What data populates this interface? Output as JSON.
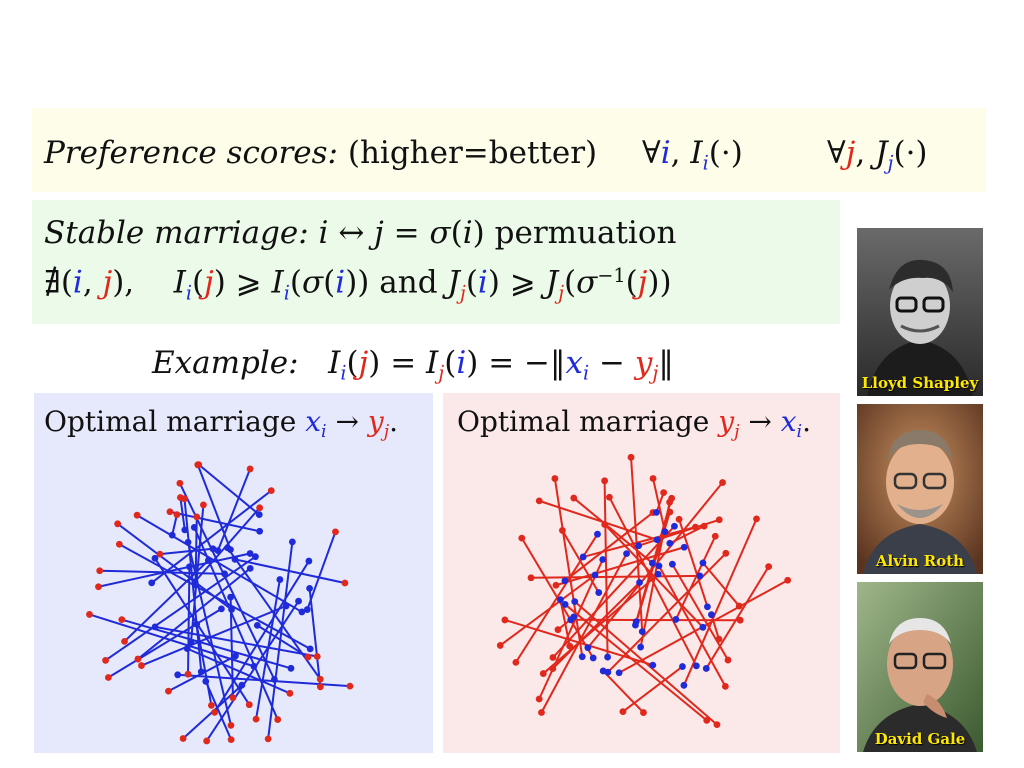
{
  "preference": {
    "label": "Preference scores:",
    "note": "(higher=better)",
    "forall": "∀",
    "i": "i",
    "j": "j",
    "I": "I",
    "J": "J",
    "dot": "(·)"
  },
  "stable": {
    "label": "Stable marriage:",
    "perm_word": "permuation",
    "and_word": "and"
  },
  "example": {
    "label": "Example:"
  },
  "left_panel": {
    "title_text": "Optimal marriage",
    "x": "x",
    "y": "y"
  },
  "right_panel": {
    "title_text": "Optimal marriage",
    "x": "x",
    "y": "y"
  },
  "people": [
    {
      "name": "Lloyd Shapley"
    },
    {
      "name": "Alvin Roth"
    },
    {
      "name": "David Gale"
    }
  ],
  "colors": {
    "index_i": "#1f2bd8",
    "index_j": "#e0281c",
    "left_line": "#1f2bd8",
    "right_line": "#e0281c"
  },
  "icons": {
    "photo_shapley": "portrait-icon",
    "photo_roth": "portrait-icon",
    "photo_gale": "portrait-icon"
  }
}
